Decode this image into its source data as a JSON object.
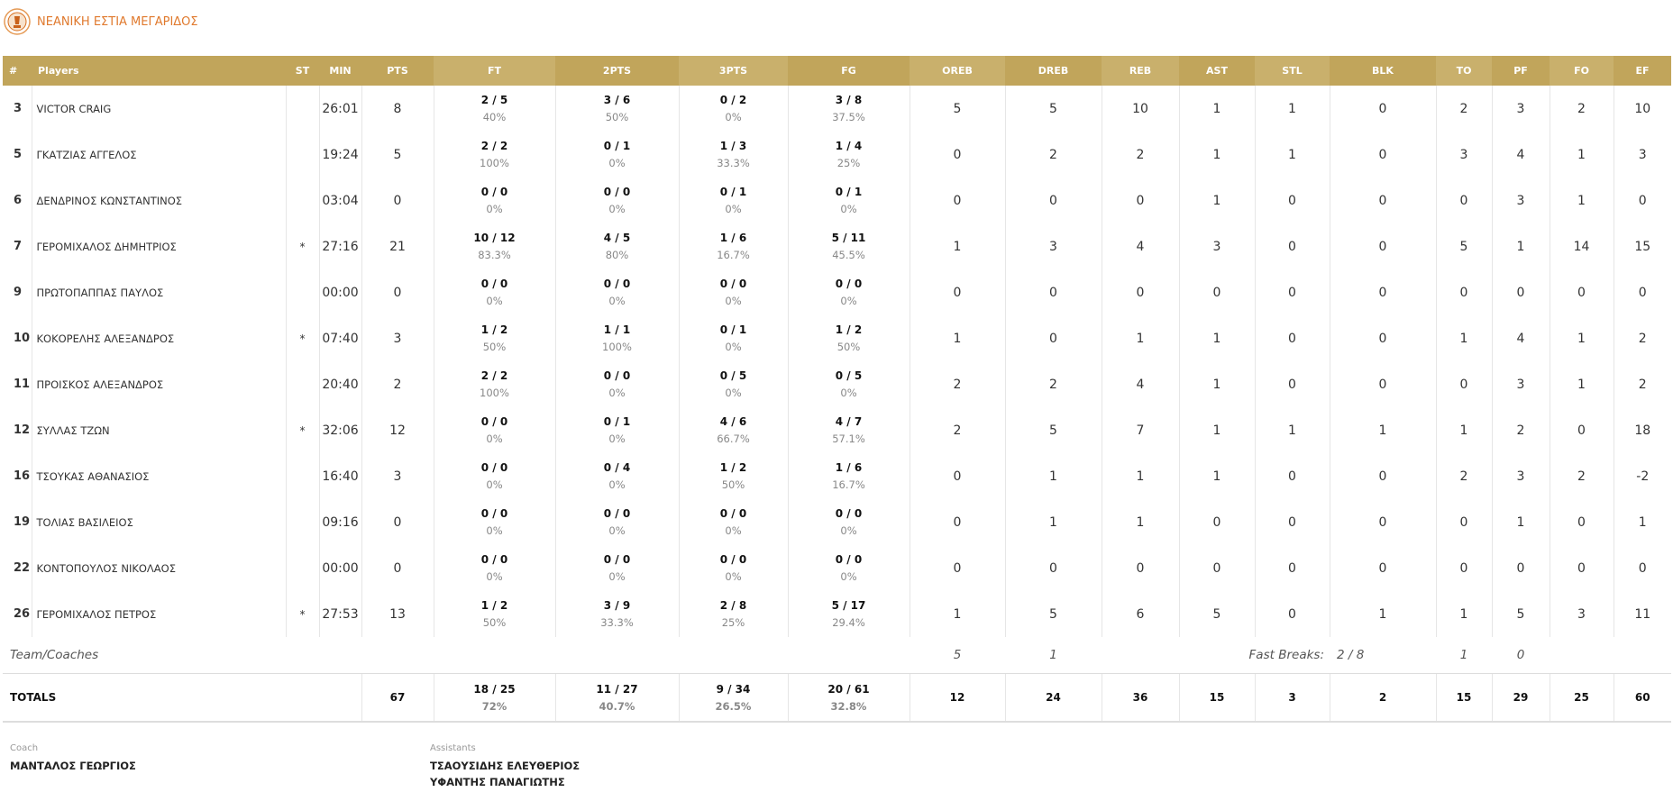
{
  "header": {
    "title": "ΝΕΑΝΙΚΗ ΕΣΤΙΑ ΜΕΓΑΡΙΔΟΣ"
  },
  "table": {
    "columns": [
      "#",
      "Players",
      "ST",
      "MIN",
      "PTS",
      "FT",
      "2PTS",
      "3PTS",
      "FG",
      "OREB",
      "DREB",
      "REB",
      "AST",
      "STL",
      "BLK",
      "TO",
      "PF",
      "FO",
      "EF"
    ],
    "rows": [
      {
        "no": 3,
        "name": "VICTOR CRAIG",
        "st": null,
        "min": "26:01",
        "pts": 8,
        "ft": [
          "2 / 5",
          "40%"
        ],
        "two": [
          "3 / 6",
          "50%"
        ],
        "three": [
          "0 / 2",
          "0%"
        ],
        "fg": [
          "3 / 8",
          "37.5%"
        ],
        "oreb": 5,
        "dreb": 5,
        "reb": 10,
        "ast": 1,
        "stl": 1,
        "blk": 0,
        "to": 2,
        "pf": 3,
        "fo": 2,
        "ef": 10
      },
      {
        "no": 5,
        "name": "ΓΚΑΤΖΙΑΣ ΑΓΓΕΛΟΣ",
        "st": null,
        "min": "19:24",
        "pts": 5,
        "ft": [
          "2 / 2",
          "100%"
        ],
        "two": [
          "0 / 1",
          "0%"
        ],
        "three": [
          "1 / 3",
          "33.3%"
        ],
        "fg": [
          "1 / 4",
          "25%"
        ],
        "oreb": 0,
        "dreb": 2,
        "reb": 2,
        "ast": 1,
        "stl": 1,
        "blk": 0,
        "to": 3,
        "pf": 4,
        "fo": 1,
        "ef": 3
      },
      {
        "no": 6,
        "name": "ΔΕΝΔΡΙΝΟΣ ΚΩΝΣΤΑΝΤΙΝΟΣ",
        "st": null,
        "min": "03:04",
        "pts": 0,
        "ft": [
          "0 / 0",
          "0%"
        ],
        "two": [
          "0 / 0",
          "0%"
        ],
        "three": [
          "0 / 1",
          "0%"
        ],
        "fg": [
          "0 / 1",
          "0%"
        ],
        "oreb": 0,
        "dreb": 0,
        "reb": 0,
        "ast": 1,
        "stl": 0,
        "blk": 0,
        "to": 0,
        "pf": 3,
        "fo": 1,
        "ef": 0
      },
      {
        "no": 7,
        "name": "ΓΕΡΟΜΙΧΑΛΟΣ ΔΗΜΗΤΡΙΟΣ",
        "st": "*",
        "min": "27:16",
        "pts": 21,
        "ft": [
          "10 / 12",
          "83.3%"
        ],
        "two": [
          "4 / 5",
          "80%"
        ],
        "three": [
          "1 / 6",
          "16.7%"
        ],
        "fg": [
          "5 / 11",
          "45.5%"
        ],
        "oreb": 1,
        "dreb": 3,
        "reb": 4,
        "ast": 3,
        "stl": 0,
        "blk": 0,
        "to": 5,
        "pf": 1,
        "fo": 14,
        "ef": 15
      },
      {
        "no": 9,
        "name": "ΠΡΩΤΟΠΑΠΠΑΣ ΠΑΥΛΟΣ",
        "st": null,
        "min": "00:00",
        "pts": 0,
        "ft": [
          "0 / 0",
          "0%"
        ],
        "two": [
          "0 / 0",
          "0%"
        ],
        "three": [
          "0 / 0",
          "0%"
        ],
        "fg": [
          "0 / 0",
          "0%"
        ],
        "oreb": 0,
        "dreb": 0,
        "reb": 0,
        "ast": 0,
        "stl": 0,
        "blk": 0,
        "to": 0,
        "pf": 0,
        "fo": 0,
        "ef": 0
      },
      {
        "no": 10,
        "name": "ΚΟΚΟΡΕΛΗΣ ΑΛΕΞΑΝΔΡΟΣ",
        "st": "*",
        "min": "07:40",
        "pts": 3,
        "ft": [
          "1 / 2",
          "50%"
        ],
        "two": [
          "1 / 1",
          "100%"
        ],
        "three": [
          "0 / 1",
          "0%"
        ],
        "fg": [
          "1 / 2",
          "50%"
        ],
        "oreb": 1,
        "dreb": 0,
        "reb": 1,
        "ast": 1,
        "stl": 0,
        "blk": 0,
        "to": 1,
        "pf": 4,
        "fo": 1,
        "ef": 2
      },
      {
        "no": 11,
        "name": "ΠΡΟΙΣΚΟΣ ΑΛΕΞΑΝΔΡΟΣ",
        "st": null,
        "min": "20:40",
        "pts": 2,
        "ft": [
          "2 / 2",
          "100%"
        ],
        "two": [
          "0 / 0",
          "0%"
        ],
        "three": [
          "0 / 5",
          "0%"
        ],
        "fg": [
          "0 / 5",
          "0%"
        ],
        "oreb": 2,
        "dreb": 2,
        "reb": 4,
        "ast": 1,
        "stl": 0,
        "blk": 0,
        "to": 0,
        "pf": 3,
        "fo": 1,
        "ef": 2
      },
      {
        "no": 12,
        "name": "ΣΥΛΛΑΣ ΤΖΩΝ",
        "st": "*",
        "min": "32:06",
        "pts": 12,
        "ft": [
          "0 / 0",
          "0%"
        ],
        "two": [
          "0 / 1",
          "0%"
        ],
        "three": [
          "4 / 6",
          "66.7%"
        ],
        "fg": [
          "4 / 7",
          "57.1%"
        ],
        "oreb": 2,
        "dreb": 5,
        "reb": 7,
        "ast": 1,
        "stl": 1,
        "blk": 1,
        "to": 1,
        "pf": 2,
        "fo": 0,
        "ef": 18
      },
      {
        "no": 16,
        "name": "ΤΣΟΥΚΑΣ ΑΘΑΝΑΣΙΟΣ",
        "st": null,
        "min": "16:40",
        "pts": 3,
        "ft": [
          "0 / 0",
          "0%"
        ],
        "two": [
          "0 / 4",
          "0%"
        ],
        "three": [
          "1 / 2",
          "50%"
        ],
        "fg": [
          "1 / 6",
          "16.7%"
        ],
        "oreb": 0,
        "dreb": 1,
        "reb": 1,
        "ast": 1,
        "stl": 0,
        "blk": 0,
        "to": 2,
        "pf": 3,
        "fo": 2,
        "ef": -2
      },
      {
        "no": 19,
        "name": "ΤΟΛΙΑΣ ΒΑΣΙΛΕΙΟΣ",
        "st": null,
        "min": "09:16",
        "pts": 0,
        "ft": [
          "0 / 0",
          "0%"
        ],
        "two": [
          "0 / 0",
          "0%"
        ],
        "three": [
          "0 / 0",
          "0%"
        ],
        "fg": [
          "0 / 0",
          "0%"
        ],
        "oreb": 0,
        "dreb": 1,
        "reb": 1,
        "ast": 0,
        "stl": 0,
        "blk": 0,
        "to": 0,
        "pf": 1,
        "fo": 0,
        "ef": 1
      },
      {
        "no": 22,
        "name": "ΚΟΝΤΟΠΟΥΛΟΣ ΝΙΚΟΛΑΟΣ",
        "st": null,
        "min": "00:00",
        "pts": 0,
        "ft": [
          "0 / 0",
          "0%"
        ],
        "two": [
          "0 / 0",
          "0%"
        ],
        "three": [
          "0 / 0",
          "0%"
        ],
        "fg": [
          "0 / 0",
          "0%"
        ],
        "oreb": 0,
        "dreb": 0,
        "reb": 0,
        "ast": 0,
        "stl": 0,
        "blk": 0,
        "to": 0,
        "pf": 0,
        "fo": 0,
        "ef": 0
      },
      {
        "no": 26,
        "name": "ΓΕΡΟΜΙΧΑΛΟΣ ΠΕΤΡΟΣ",
        "st": "*",
        "min": "27:53",
        "pts": 13,
        "ft": [
          "1 / 2",
          "50%"
        ],
        "two": [
          "3 / 9",
          "33.3%"
        ],
        "three": [
          "2 / 8",
          "25%"
        ],
        "fg": [
          "5 / 17",
          "29.4%"
        ],
        "oreb": 1,
        "dreb": 5,
        "reb": 6,
        "ast": 5,
        "stl": 0,
        "blk": 1,
        "to": 1,
        "pf": 5,
        "fo": 3,
        "ef": 11
      }
    ],
    "team": {
      "label": "Team/Coaches",
      "oreb": 5,
      "dreb": 1,
      "fast_breaks_label": "Fast Breaks:",
      "fast_breaks": "2 / 8",
      "to": 1,
      "pf": 0
    },
    "totals": {
      "label": "TOTALS",
      "pts": 67,
      "ft": [
        "18 / 25",
        "72%"
      ],
      "two": [
        "11 / 27",
        "40.7%"
      ],
      "three": [
        "9 / 34",
        "26.5%"
      ],
      "fg": [
        "20 / 61",
        "32.8%"
      ],
      "oreb": 12,
      "dreb": 24,
      "reb": 36,
      "ast": 15,
      "stl": 3,
      "blk": 2,
      "to": 15,
      "pf": 29,
      "fo": 25,
      "ef": 60
    }
  },
  "staff": {
    "coach_label": "Coach",
    "coach": "ΜΑΝΤΑΛΟΣ ΓΕΩΡΓΙΟΣ",
    "assistants_label": "Assistants",
    "assistants": [
      "ΤΣΑΟΥΣΙΔΗΣ ΕΛΕΥΘΕΡΙΟΣ",
      "ΥΦΑΝΤΗΣ ΠΑΝΑΓΙΩΤΗΣ"
    ]
  }
}
